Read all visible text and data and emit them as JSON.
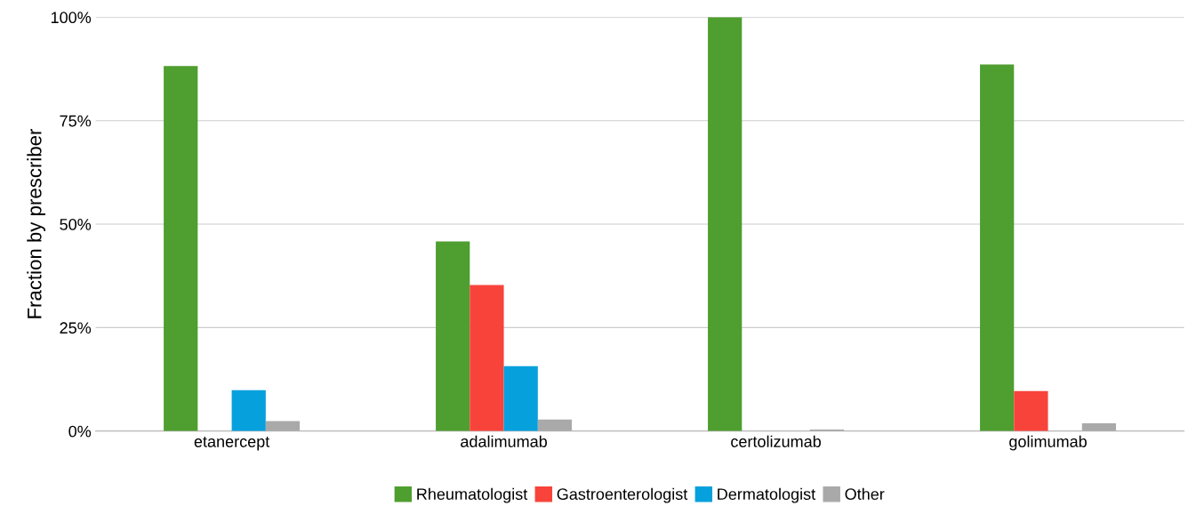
{
  "chart_data": {
    "type": "bar",
    "ylabel": "Fraction by prescriber",
    "categories": [
      "etanercept",
      "adalimumab",
      "certolizumab",
      "golimumab"
    ],
    "series": [
      {
        "name": "Rheumatologist",
        "color": "#4f9e30",
        "values": [
          88.2,
          45.8,
          100,
          88.6
        ]
      },
      {
        "name": "Gastroenterologist",
        "color": "#f8433b",
        "values": [
          0,
          35.3,
          0,
          9.7
        ]
      },
      {
        "name": "Dermatologist",
        "color": "#06a0dd",
        "values": [
          9.9,
          15.7,
          0,
          0
        ]
      },
      {
        "name": "Other",
        "color": "#a9a9a9",
        "values": [
          2.4,
          2.8,
          0.4,
          1.9
        ]
      }
    ],
    "ylim": [
      0,
      100
    ],
    "yticks": [
      {
        "value": 0,
        "label": "0%"
      },
      {
        "value": 25,
        "label": "25%"
      },
      {
        "value": 50,
        "label": "50%"
      },
      {
        "value": 75,
        "label": "75%"
      },
      {
        "value": 100,
        "label": "100%"
      }
    ],
    "grid": "y",
    "legend": "bottom"
  }
}
